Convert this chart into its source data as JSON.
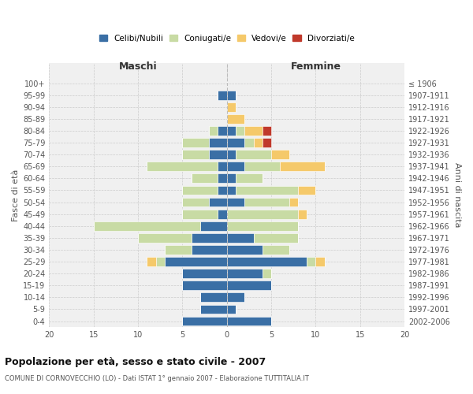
{
  "age_groups": [
    "0-4",
    "5-9",
    "10-14",
    "15-19",
    "20-24",
    "25-29",
    "30-34",
    "35-39",
    "40-44",
    "45-49",
    "50-54",
    "55-59",
    "60-64",
    "65-69",
    "70-74",
    "75-79",
    "80-84",
    "85-89",
    "90-94",
    "95-99",
    "100+"
  ],
  "birth_years": [
    "2002-2006",
    "1997-2001",
    "1992-1996",
    "1987-1991",
    "1982-1986",
    "1977-1981",
    "1972-1976",
    "1967-1971",
    "1962-1966",
    "1957-1961",
    "1952-1956",
    "1947-1951",
    "1942-1946",
    "1937-1941",
    "1932-1936",
    "1927-1931",
    "1922-1926",
    "1917-1921",
    "1912-1916",
    "1907-1911",
    "≤ 1906"
  ],
  "colors": {
    "celibi": "#3a6fa5",
    "coniugati": "#c8dba4",
    "vedovi": "#f5c96a",
    "divorziati": "#c0392b"
  },
  "maschi": {
    "celibi": [
      5,
      3,
      3,
      5,
      5,
      7,
      4,
      4,
      3,
      1,
      2,
      1,
      1,
      1,
      2,
      2,
      1,
      0,
      0,
      1,
      0
    ],
    "coniugati": [
      0,
      0,
      0,
      0,
      0,
      1,
      3,
      6,
      12,
      4,
      3,
      4,
      3,
      8,
      3,
      3,
      1,
      0,
      0,
      0,
      0
    ],
    "vedovi": [
      0,
      0,
      0,
      0,
      0,
      1,
      0,
      0,
      0,
      0,
      0,
      0,
      0,
      0,
      0,
      0,
      0,
      0,
      0,
      0,
      0
    ],
    "divorziati": [
      0,
      0,
      0,
      0,
      0,
      0,
      0,
      0,
      0,
      0,
      0,
      0,
      0,
      0,
      0,
      0,
      0,
      0,
      0,
      0,
      0
    ]
  },
  "femmine": {
    "celibi": [
      5,
      1,
      2,
      5,
      4,
      9,
      4,
      3,
      0,
      0,
      2,
      1,
      1,
      2,
      1,
      2,
      1,
      0,
      0,
      1,
      0
    ],
    "coniugati": [
      0,
      0,
      0,
      0,
      1,
      1,
      3,
      5,
      8,
      8,
      5,
      7,
      3,
      4,
      4,
      1,
      1,
      0,
      0,
      0,
      0
    ],
    "vedovi": [
      0,
      0,
      0,
      0,
      0,
      1,
      0,
      0,
      0,
      1,
      1,
      2,
      0,
      5,
      2,
      1,
      2,
      2,
      1,
      0,
      0
    ],
    "divorziati": [
      0,
      0,
      0,
      0,
      0,
      0,
      0,
      0,
      0,
      0,
      0,
      0,
      0,
      0,
      0,
      1,
      1,
      0,
      0,
      0,
      0
    ]
  },
  "xlim": 20,
  "title": "Popolazione per età, sesso e stato civile - 2007",
  "subtitle": "COMUNE DI CORNOVECCHIO (LO) - Dati ISTAT 1° gennaio 2007 - Elaborazione TUTTITALIA.IT",
  "xlabel_left": "Maschi",
  "xlabel_right": "Femmine",
  "ylabel_left": "Fasce di età",
  "ylabel_right": "Anni di nascita",
  "legend_labels": [
    "Celibi/Nubili",
    "Coniugati/e",
    "Vedovi/e",
    "Divorziati/e"
  ],
  "bg_color": "#f0f0f0",
  "grid_color": "#cccccc",
  "fig_bg": "#ffffff"
}
